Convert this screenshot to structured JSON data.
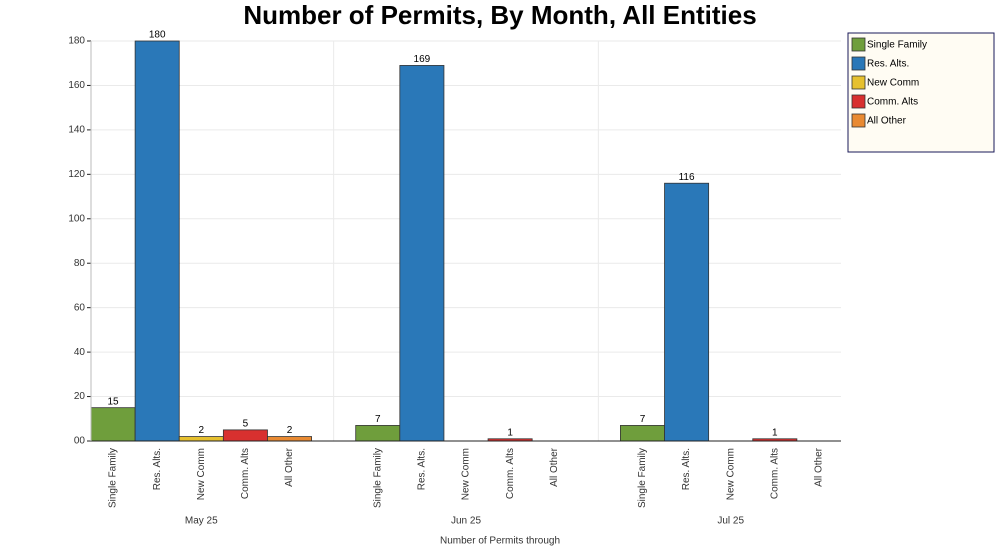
{
  "chart_data": {
    "type": "bar",
    "title": "Number of Permits, By Month, All Entities",
    "x_label": "Number of Permits  through",
    "categories": [
      "May 25",
      "Jun 25",
      "Jul 25"
    ],
    "series": [
      {
        "name": "Single Family",
        "color": "#6f9e3c",
        "values": [
          15,
          7,
          7
        ]
      },
      {
        "name": "Res. Alts.",
        "color": "#2a78b8",
        "values": [
          180,
          169,
          116
        ]
      },
      {
        "name": "New Comm",
        "color": "#e6c02e",
        "values": [
          2,
          0,
          0
        ]
      },
      {
        "name": "Comm. Alts",
        "color": "#d8302f",
        "values": [
          5,
          1,
          1
        ]
      },
      {
        "name": "All Other",
        "color": "#e98a32",
        "values": [
          2,
          0,
          0
        ]
      }
    ],
    "ylim": [
      0,
      180
    ],
    "yticks": [
      {
        "value": 0,
        "label": "00"
      },
      20,
      40,
      60,
      80,
      100,
      120,
      140,
      160,
      180
    ],
    "grid": true,
    "legend": "top-right"
  }
}
